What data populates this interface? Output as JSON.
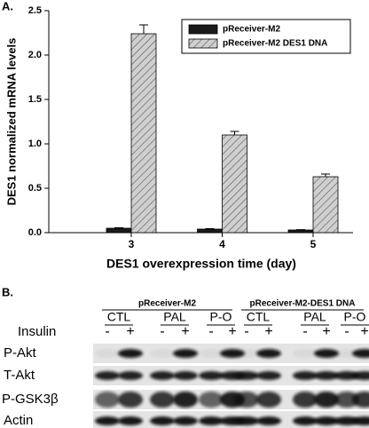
{
  "panel_labels": [
    "A.",
    "B."
  ],
  "chart_data": {
    "type": "bar",
    "ylabel": "DES1 normalized mRNA levels",
    "xlabel": "DES1 overexpression time (day)",
    "categories": [
      "3",
      "4",
      "5"
    ],
    "series": [
      {
        "name": "pReceiver-M2",
        "color": "#1a1a1a",
        "hatch": false,
        "values": [
          0.05,
          0.04,
          0.03
        ],
        "errors": [
          0.005,
          0.005,
          0.004
        ]
      },
      {
        "name": "pReceiver-M2 DES1 DNA",
        "color": "#cfcfcf",
        "hatch": true,
        "values": [
          2.24,
          1.1,
          0.63
        ],
        "errors": [
          0.1,
          0.04,
          0.03
        ]
      }
    ],
    "ylim": [
      0,
      2.5
    ],
    "yticks": [
      {
        "value": 0,
        "label": "0.0"
      },
      0.5,
      {
        "value": 1,
        "label": "1.0"
      },
      1.5,
      {
        "value": 2,
        "label": "2.0"
      },
      2.5
    ],
    "legend": "upper right"
  },
  "blot": {
    "groups": [
      {
        "label": "pReceiver-M2",
        "conditions": [
          "CTL",
          "PAL",
          "P-O"
        ]
      },
      {
        "label": "pReceiver-M2-DES1 DNA",
        "conditions": [
          "CTL",
          "PAL",
          "P-O"
        ]
      }
    ],
    "insulin_label": "Insulin",
    "insulin_signs": [
      "-",
      "+",
      "-",
      "+",
      "-",
      "+",
      "-",
      "+",
      "-",
      "+",
      "-",
      "+"
    ],
    "rows": [
      "P-Akt",
      "T-Akt",
      "P-GSK3β",
      "Actin"
    ]
  }
}
